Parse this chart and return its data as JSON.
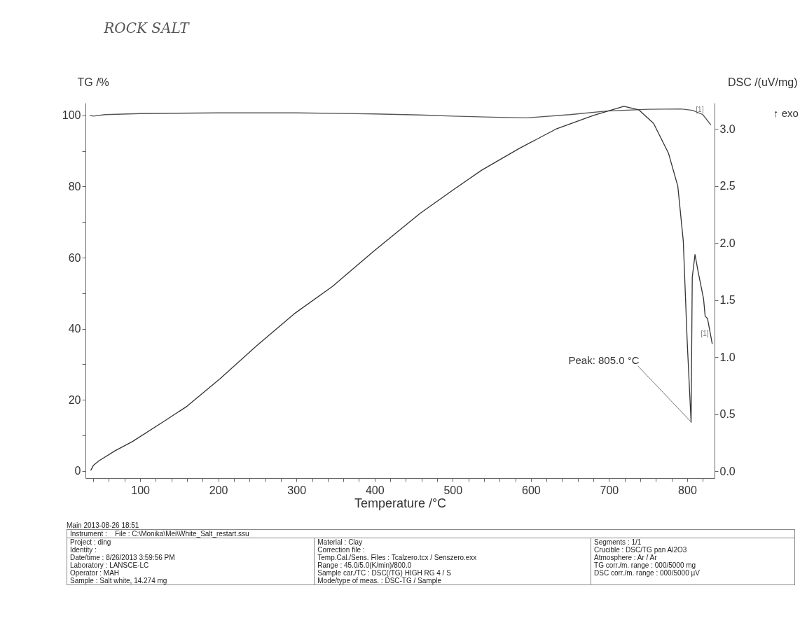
{
  "chart_data": {
    "type": "line",
    "title": "ROCK SALT",
    "xlabel": "Temperature /°C",
    "ylabel": "TG /%",
    "y2label": "DSC /(uV/mg)",
    "xlim": [
      30,
      835
    ],
    "xticks": [
      {
        "value": 40,
        "label": null
      },
      {
        "value": 60,
        "label": null
      },
      {
        "value": 80,
        "label": null
      },
      100,
      {
        "value": 120,
        "label": null
      },
      {
        "value": 140,
        "label": null
      },
      {
        "value": 160,
        "label": null
      },
      {
        "value": 180,
        "label": null
      },
      200,
      {
        "value": 220,
        "label": null
      },
      {
        "value": 240,
        "label": null
      },
      {
        "value": 260,
        "label": null
      },
      {
        "value": 280,
        "label": null
      },
      300,
      {
        "value": 320,
        "label": null
      },
      {
        "value": 340,
        "label": null
      },
      {
        "value": 360,
        "label": null
      },
      {
        "value": 380,
        "label": null
      },
      400,
      {
        "value": 420,
        "label": null
      },
      {
        "value": 440,
        "label": null
      },
      {
        "value": 460,
        "label": null
      },
      {
        "value": 480,
        "label": null
      },
      500,
      {
        "value": 520,
        "label": null
      },
      {
        "value": 540,
        "label": null
      },
      {
        "value": 560,
        "label": null
      },
      {
        "value": 580,
        "label": null
      },
      600,
      {
        "value": 620,
        "label": null
      },
      {
        "value": 640,
        "label": null
      },
      {
        "value": 660,
        "label": null
      },
      {
        "value": 680,
        "label": null
      },
      700,
      {
        "value": 720,
        "label": null
      },
      {
        "value": 740,
        "label": null
      },
      {
        "value": 760,
        "label": null
      },
      {
        "value": 780,
        "label": null
      },
      800,
      {
        "value": 820,
        "label": null
      }
    ],
    "ylim": [
      -2,
      103.5
    ],
    "yticks": [
      0,
      {
        "value": 10,
        "label": null
      },
      20,
      {
        "value": 30,
        "label": null
      },
      40,
      {
        "value": 50,
        "label": null
      },
      60,
      {
        "value": 70,
        "label": null
      },
      80,
      {
        "value": 90,
        "label": null
      },
      100
    ],
    "y2lim": [
      -0.06,
      3.23
    ],
    "y2ticks": [
      {
        "value": 0,
        "label": "0.0"
      },
      {
        "value": 0.5,
        "label": "0.5"
      },
      {
        "value": 1,
        "label": "1.0"
      },
      {
        "value": 1.5,
        "label": "1.5"
      },
      {
        "value": 2,
        "label": "2.0"
      },
      {
        "value": 2.5,
        "label": "2.5"
      },
      {
        "value": 3,
        "label": "3.0"
      }
    ],
    "series": [
      {
        "name": "[1]",
        "color": "#555555",
        "x": [
          36,
          40,
          55,
          100,
          200,
          300,
          400,
          458,
          500,
          550,
          595,
          650,
          697,
          750,
          792,
          807,
          820,
          830
        ],
        "values": [
          100,
          99.8,
          100.2,
          100.5,
          100.7,
          100.7,
          100.4,
          100.1,
          99.8,
          99.5,
          99.3,
          100.2,
          101.2,
          101.7,
          101.8,
          101.4,
          100.2,
          97.4
        ]
      },
      {
        "name": "[1]",
        "color": "#333333",
        "axis": "y2",
        "x": [
          37,
          40,
          47,
          68,
          90,
          131,
          160,
          202,
          249,
          297,
          346,
          399,
          458,
          499,
          537,
          585,
          632,
          680,
          719,
          738,
          757,
          776,
          788,
          795,
          800,
          805,
          806.5,
          810,
          814,
          821,
          823,
          826,
          832
        ],
        "values": [
          0.01,
          0.05,
          0.09,
          0.18,
          0.26,
          0.44,
          0.57,
          0.81,
          1.1,
          1.38,
          1.62,
          1.93,
          2.26,
          2.46,
          2.64,
          2.83,
          3.0,
          3.12,
          3.2,
          3.17,
          3.05,
          2.79,
          2.5,
          2.02,
          1.14,
          0.43,
          1.7,
          1.9,
          1.75,
          1.51,
          1.36,
          1.34,
          1.12
        ]
      }
    ],
    "annotations": [
      {
        "text": "Peak: 805.0 °C",
        "x": 805,
        "y": 13.8
      },
      "↑ exo",
      "Main 2013-08-26 18:51",
      "Instrument :",
      "File : C:\\Monika\\Mei\\White_Salt_restart.ssu",
      "Project : ding",
      "Identity :",
      "Date/time : 8/26/2013 3:59:56 PM",
      "Laboratory : LANSCE-LC",
      "Operator : MAH",
      "Sample : Salt white, 14.274 mg",
      "Material : Clay",
      "Correction file :",
      "Temp.Cal./Sens. Files : Tcalzero.tcx / Senszero.exx",
      "Range : 45.0/5.0(K/min)/800.0",
      "Sample car./TC : DSC(/TG) HIGH RG 4 / S",
      "Mode/type of meas. : DSC-TG / Sample",
      "Segments : 1/1",
      "Crucible : DSC/TG pan Al2O3",
      "Atmosphere : Ar / Ar",
      "TG corr./m. range : 000/5000 mg",
      "DSC corr./m. range : 000/5000 µV"
    ],
    "grid": false,
    "marker": "none",
    "line_style": "solid"
  }
}
